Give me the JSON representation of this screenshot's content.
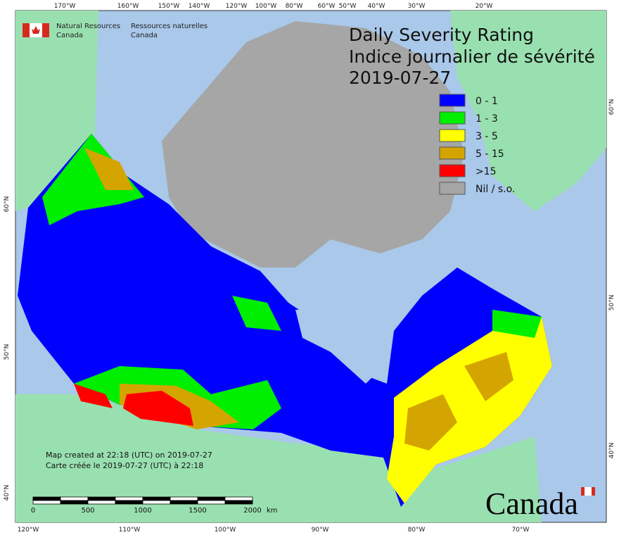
{
  "header": {
    "title": "Daily Severity Rating",
    "title_fr": "Indice journalier de sévérité",
    "date": "2019-07-27"
  },
  "agency": {
    "en": [
      "Natural Resources",
      "Canada"
    ],
    "fr": [
      "Ressources naturelles",
      "Canada"
    ]
  },
  "legend": [
    {
      "label": "0 - 1",
      "color": "#0000ff"
    },
    {
      "label": "1 - 3",
      "color": "#00ee00"
    },
    {
      "label": "3 - 5",
      "color": "#ffff00"
    },
    {
      "label": "5 - 15",
      "color": "#d4a500"
    },
    {
      "label": ">15",
      "color": "#ff0000"
    },
    {
      "label": "Nil / s.o.",
      "color": "#a6a6a6"
    }
  ],
  "graticule": {
    "top": [
      "170°W",
      "160°W",
      "150°W",
      "140°W",
      "120°W",
      "100°W",
      "80°W",
      "60°W",
      "50°W",
      "40°W",
      "30°W",
      "20°W"
    ],
    "bottom": [
      "120°W",
      "110°W",
      "100°W",
      "90°W",
      "80°W",
      "70°W"
    ],
    "left": [
      "60°N",
      "50°N",
      "40°N"
    ],
    "right": [
      "60°N",
      "50°N",
      "40°N"
    ]
  },
  "scale_bar": {
    "labels": [
      "0",
      "500",
      "1000",
      "1500",
      "2000"
    ],
    "unit": "km"
  },
  "credits": [
    "Map created at 22:18 (UTC) on 2019-07-27",
    "Carte créée le 2019-07-27 (UTC) à 22:18"
  ],
  "wordmark": "Canada"
}
